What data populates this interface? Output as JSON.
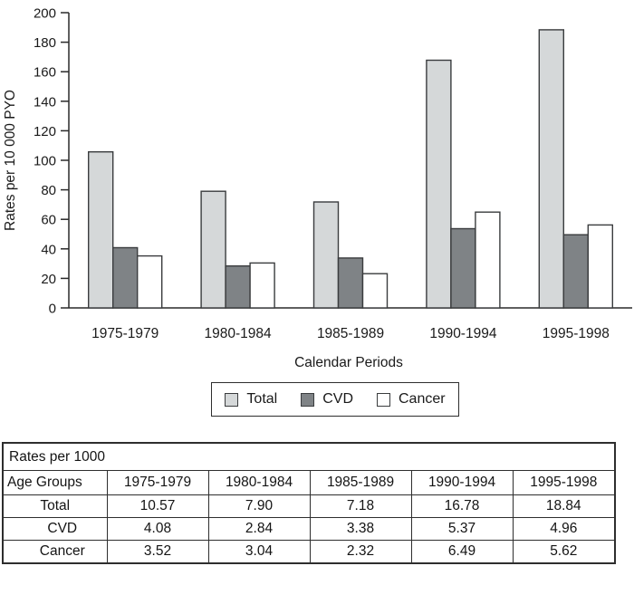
{
  "colors": {
    "axis": "#2a2a2a",
    "bar_stroke": "#3a3c3e",
    "text": "#1a1a1a"
  },
  "chart_data": {
    "type": "bar",
    "title": "",
    "categories": [
      "1975-1979",
      "1980-1984",
      "1985-1989",
      "1990-1994",
      "1995-1998"
    ],
    "series": [
      {
        "name": "Total",
        "color": "#d5d8d9",
        "values": [
          105.7,
          79.0,
          71.8,
          167.8,
          188.4
        ]
      },
      {
        "name": "CVD",
        "color": "#7f8386",
        "values": [
          40.8,
          28.4,
          33.8,
          53.7,
          49.6
        ]
      },
      {
        "name": "Cancer",
        "color": "#ffffff",
        "values": [
          35.2,
          30.4,
          23.2,
          64.9,
          56.2
        ]
      }
    ],
    "xlabel": "Calendar Periods",
    "ylabel": "Rates per 10 000 PYO",
    "ylim": [
      0,
      200
    ],
    "ytick_step": 20,
    "grid": false,
    "legend_position": "bottom"
  },
  "legend": {
    "items": [
      {
        "label": "Total"
      },
      {
        "label": "CVD"
      },
      {
        "label": "Cancer"
      }
    ]
  },
  "table": {
    "title": "Rates per 1000",
    "header": [
      "Age Groups",
      "1975-1979",
      "1980-1984",
      "1985-1989",
      "1990-1994",
      "1995-1998"
    ],
    "rows": [
      {
        "label": "Total",
        "values": [
          "10.57",
          "7.90",
          "7.18",
          "16.78",
          "18.84"
        ]
      },
      {
        "label": "CVD",
        "values": [
          "4.08",
          "2.84",
          "3.38",
          "5.37",
          "4.96"
        ]
      },
      {
        "label": "Cancer",
        "values": [
          "3.52",
          "3.04",
          "2.32",
          "6.49",
          "5.62"
        ]
      }
    ]
  }
}
